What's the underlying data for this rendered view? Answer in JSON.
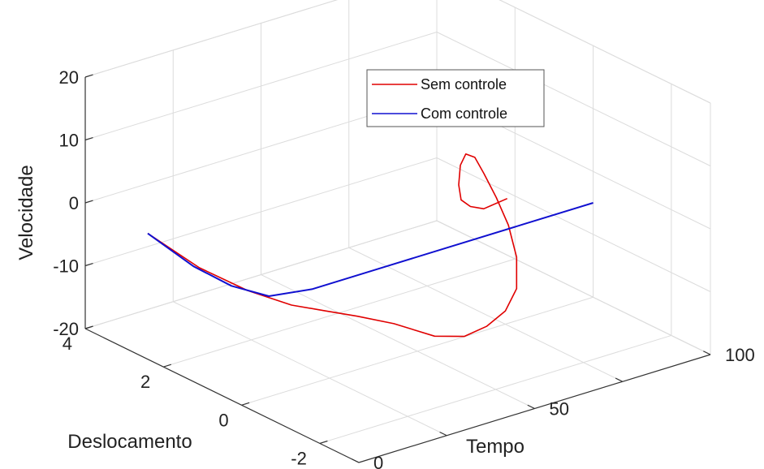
{
  "chart_data": {
    "type": "line",
    "projection": "3d",
    "grid": true,
    "legend_position": "top-right",
    "xlabel": "Tempo",
    "ylabel": "Deslocamento",
    "zlabel": "Velocidade",
    "xlim": [
      0,
      100
    ],
    "ylim": [
      -3,
      4
    ],
    "zlim": [
      -20,
      20
    ],
    "xticks": [
      "0",
      "50",
      "100"
    ],
    "yticks": [
      "-2",
      "0",
      "2",
      "4"
    ],
    "zticks": [
      "-20",
      "-10",
      "0",
      "10",
      "20"
    ],
    "series": [
      {
        "name": "Sem controle",
        "color": "#e00000",
        "points": [
          [
            0,
            2.4,
            0
          ],
          [
            8,
            1.8,
            -5
          ],
          [
            15,
            1.2,
            -8
          ],
          [
            22,
            0.7,
            -10
          ],
          [
            28,
            0.4,
            -11
          ],
          [
            34,
            0.1,
            -12
          ],
          [
            40,
            -0.3,
            -13
          ],
          [
            46,
            -0.8,
            -14.5
          ],
          [
            50,
            -1.2,
            -14
          ],
          [
            53,
            -1.5,
            -12
          ],
          [
            55,
            -1.8,
            -9
          ],
          [
            56,
            -2.0,
            -5
          ],
          [
            56,
            -2.0,
            0
          ],
          [
            57,
            -1.7,
            4
          ],
          [
            58,
            -1.3,
            7
          ],
          [
            60,
            -0.8,
            9
          ],
          [
            63,
            -0.3,
            9.5
          ],
          [
            66,
            0.2,
            8
          ],
          [
            70,
            0.7,
            4
          ],
          [
            74,
            1.1,
            -1
          ],
          [
            78,
            1.4,
            -5
          ],
          [
            84,
            1.7,
            -8
          ],
          [
            90,
            1.9,
            -10
          ],
          [
            100,
            2.2,
            -11
          ]
        ]
      },
      {
        "name": "Com controle",
        "color": "#1010d0",
        "points": [
          [
            0,
            2.4,
            0
          ],
          [
            3,
            1.5,
            -3
          ],
          [
            6,
            0.8,
            -4.5
          ],
          [
            10,
            0.2,
            -5
          ],
          [
            20,
            0.0,
            -5
          ],
          [
            40,
            0.0,
            -5
          ],
          [
            60,
            0.0,
            -5
          ],
          [
            80,
            0.0,
            -5
          ],
          [
            100,
            0.0,
            -5
          ]
        ]
      }
    ]
  }
}
